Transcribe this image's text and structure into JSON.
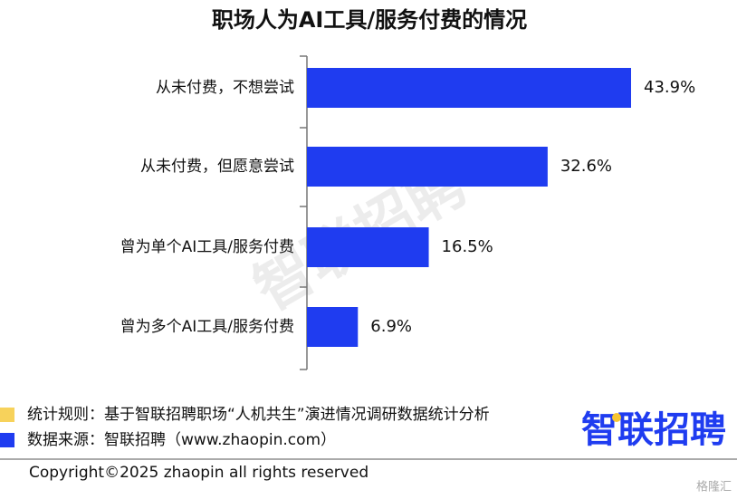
{
  "chart_data": {
    "type": "bar",
    "orientation": "horizontal",
    "title": "职场人为AI工具/服务付费的情况",
    "categories": [
      "从未付费，不想尝试",
      "从未付费，但愿意尝试",
      "曾为单个AI工具/服务付费",
      "曾为多个AI工具/服务付费"
    ],
    "values": [
      43.9,
      32.6,
      16.5,
      6.9
    ],
    "value_labels": [
      "43.9%",
      "32.6%",
      "16.5%",
      "6.9%"
    ],
    "color": "#1f3cf0"
  },
  "footnotes": [
    "统计规则：基于智联招聘职场“人机共生”演进情况调研数据统计分析",
    "数据来源：智联招聘（www.zhaopin.com）"
  ],
  "logo": "智联招聘",
  "watermark": "智联招聘",
  "copyright": "Copyright©2025 zhaopin all rights reserved",
  "corner_mark": "格隆汇"
}
